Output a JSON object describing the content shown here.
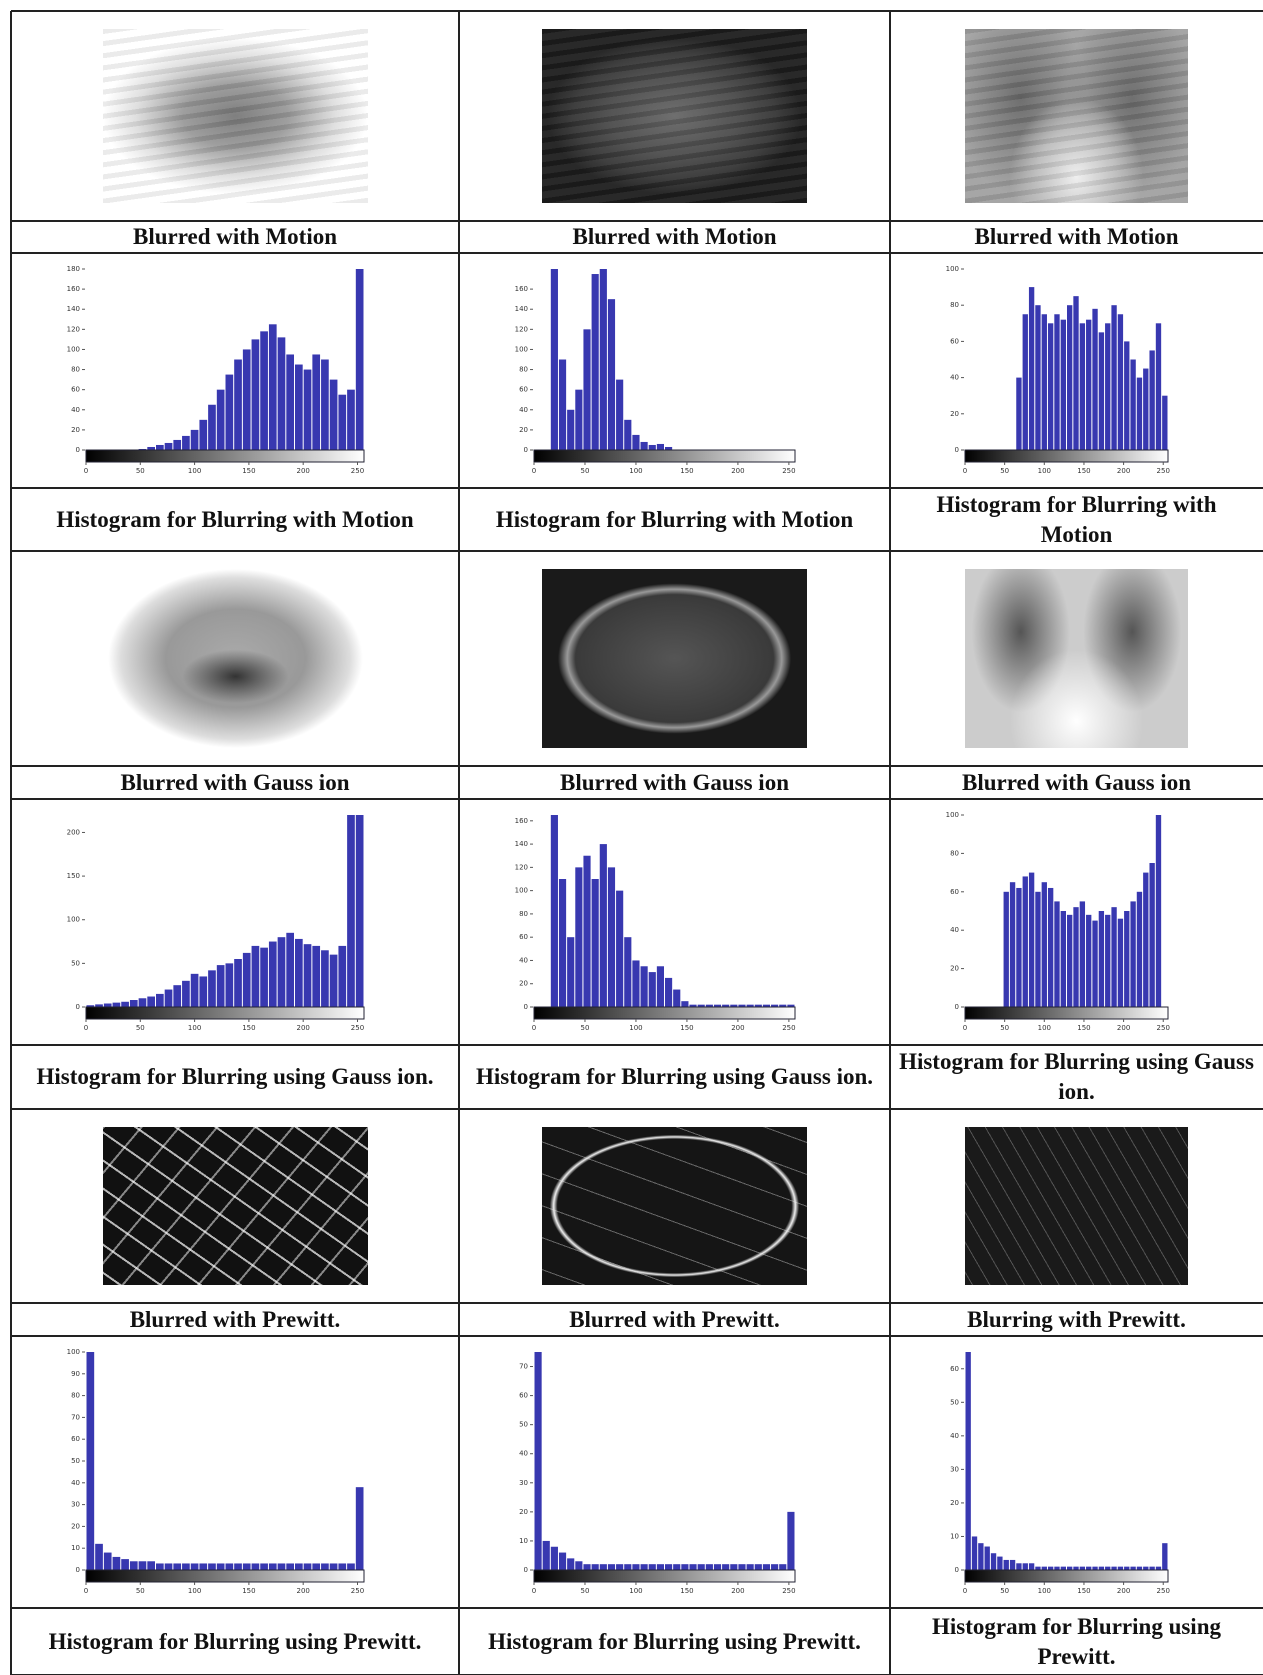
{
  "sections": [
    {
      "cells": [
        {
          "caption": "Blurred with Motion"
        },
        {
          "caption": "Blurred with Motion"
        },
        {
          "caption": "Blurred with Motion"
        }
      ]
    },
    {
      "cells": [
        {
          "caption": "Histogram for Blurring with Motion",
          "histogram": {
            "type": "bar",
            "color": "#3838b0",
            "xlim": [
              0,
              256
            ],
            "xticks": [
              0,
              50,
              100,
              150,
              200,
              250
            ],
            "ylim": [
              0,
              180
            ],
            "yticks": [
              0,
              20,
              40,
              60,
              80,
              100,
              120,
              140,
              160,
              180
            ],
            "values": [
              0,
              0,
              0,
              0,
              0,
              0,
              1,
              3,
              5,
              7,
              10,
              14,
              20,
              30,
              45,
              60,
              75,
              90,
              100,
              110,
              118,
              125,
              112,
              95,
              85,
              80,
              95,
              90,
              70,
              55,
              60,
              180
            ]
          }
        },
        {
          "caption": "Histogram for Blurring with Motion",
          "histogram": {
            "type": "bar",
            "color": "#3838b0",
            "xlim": [
              0,
              256
            ],
            "xticks": [
              0,
              50,
              100,
              150,
              200,
              250
            ],
            "ylim": [
              0,
              180
            ],
            "yticks": [
              0,
              20,
              40,
              60,
              80,
              100,
              120,
              140,
              160
            ],
            "values": [
              0,
              0,
              180,
              90,
              40,
              60,
              120,
              175,
              180,
              150,
              70,
              30,
              15,
              8,
              5,
              6,
              3,
              0,
              0,
              0,
              0,
              0,
              0,
              0,
              0,
              0,
              0,
              0,
              0,
              0,
              0,
              0
            ]
          }
        },
        {
          "caption": "Histogram for Blurring with Motion",
          "histogram": {
            "type": "bar",
            "color": "#3838b0",
            "xlim": [
              0,
              256
            ],
            "xticks": [
              0,
              50,
              100,
              150,
              200,
              250
            ],
            "ylim": [
              0,
              100
            ],
            "yticks": [
              0,
              20,
              40,
              60,
              80,
              100
            ],
            "values": [
              0,
              0,
              0,
              0,
              0,
              0,
              0,
              0,
              40,
              75,
              90,
              80,
              75,
              70,
              75,
              72,
              80,
              85,
              70,
              72,
              78,
              65,
              70,
              80,
              75,
              60,
              50,
              40,
              45,
              55,
              70,
              30
            ]
          }
        }
      ]
    },
    {
      "cells": [
        {
          "caption": "Blurred with Gauss ion"
        },
        {
          "caption": "Blurred with Gauss ion"
        },
        {
          "caption": "Blurred with Gauss ion"
        }
      ]
    },
    {
      "cells": [
        {
          "caption": "Histogram for Blurring using Gauss ion.",
          "histogram": {
            "type": "bar",
            "color": "#3838b0",
            "xlim": [
              0,
              256
            ],
            "xticks": [
              0,
              50,
              100,
              150,
              200,
              250
            ],
            "ylim": [
              0,
              220
            ],
            "yticks": [
              0,
              50,
              100,
              150,
              200
            ],
            "values": [
              2,
              3,
              4,
              5,
              6,
              8,
              10,
              12,
              15,
              20,
              25,
              30,
              38,
              35,
              42,
              48,
              50,
              55,
              62,
              70,
              68,
              75,
              80,
              85,
              78,
              72,
              70,
              65,
              60,
              70,
              220,
              220
            ]
          }
        },
        {
          "caption": "Histogram for Blurring using Gauss ion.",
          "histogram": {
            "type": "bar",
            "color": "#3838b0",
            "xlim": [
              0,
              256
            ],
            "xticks": [
              0,
              50,
              100,
              150,
              200,
              250
            ],
            "ylim": [
              0,
              165
            ],
            "yticks": [
              0,
              20,
              40,
              60,
              80,
              100,
              120,
              140,
              160
            ],
            "values": [
              0,
              0,
              165,
              110,
              60,
              120,
              130,
              110,
              140,
              120,
              100,
              60,
              40,
              35,
              30,
              35,
              25,
              15,
              5,
              2,
              2,
              2,
              2,
              2,
              2,
              2,
              2,
              2,
              2,
              2,
              2,
              2
            ]
          }
        },
        {
          "caption": "Histogram for Blurring using Gauss ion.",
          "histogram": {
            "type": "bar",
            "color": "#3838b0",
            "xlim": [
              0,
              256
            ],
            "xticks": [
              0,
              50,
              100,
              150,
              200,
              250
            ],
            "ylim": [
              0,
              100
            ],
            "yticks": [
              0,
              20,
              40,
              60,
              80,
              100
            ],
            "values": [
              0,
              0,
              0,
              0,
              0,
              0,
              60,
              65,
              62,
              68,
              70,
              60,
              65,
              62,
              55,
              50,
              48,
              52,
              55,
              48,
              45,
              50,
              48,
              52,
              46,
              50,
              55,
              60,
              70,
              75,
              100,
              0
            ]
          }
        }
      ]
    },
    {
      "cells": [
        {
          "caption": "Blurred with Prewitt."
        },
        {
          "caption": "Blurred with Prewitt."
        },
        {
          "caption": "Blurring with Prewitt."
        }
      ]
    },
    {
      "cells": [
        {
          "caption": "Histogram for Blurring using Prewitt.",
          "histogram": {
            "type": "bar",
            "color": "#3838b0",
            "xlim": [
              0,
              256
            ],
            "xticks": [
              0,
              50,
              100,
              150,
              200,
              250
            ],
            "ylim": [
              0,
              100
            ],
            "yticks": [
              0,
              10,
              20,
              30,
              40,
              50,
              60,
              70,
              80,
              90,
              100
            ],
            "values": [
              100,
              12,
              8,
              6,
              5,
              4,
              4,
              4,
              3,
              3,
              3,
              3,
              3,
              3,
              3,
              3,
              3,
              3,
              3,
              3,
              3,
              3,
              3,
              3,
              3,
              3,
              3,
              3,
              3,
              3,
              3,
              38
            ]
          }
        },
        {
          "caption": "Histogram for Blurring using Prewitt.",
          "histogram": {
            "type": "bar",
            "color": "#3838b0",
            "xlim": [
              0,
              256
            ],
            "xticks": [
              0,
              50,
              100,
              150,
              200,
              250
            ],
            "ylim": [
              0,
              75
            ],
            "yticks": [
              0,
              10,
              20,
              30,
              40,
              50,
              60,
              70
            ],
            "values": [
              75,
              10,
              8,
              6,
              4,
              3,
              2,
              2,
              2,
              2,
              2,
              2,
              2,
              2,
              2,
              2,
              2,
              2,
              2,
              2,
              2,
              2,
              2,
              2,
              2,
              2,
              2,
              2,
              2,
              2,
              2,
              20
            ]
          }
        },
        {
          "caption": "Histogram for Blurring using Prewitt.",
          "histogram": {
            "type": "bar",
            "color": "#3838b0",
            "xlim": [
              0,
              256
            ],
            "xticks": [
              0,
              50,
              100,
              150,
              200,
              250
            ],
            "ylim": [
              0,
              65
            ],
            "yticks": [
              0,
              10,
              20,
              30,
              40,
              50,
              60
            ],
            "values": [
              65,
              10,
              8,
              7,
              5,
              4,
              3,
              3,
              2,
              2,
              2,
              1,
              1,
              1,
              1,
              1,
              1,
              1,
              1,
              1,
              1,
              1,
              1,
              1,
              1,
              1,
              1,
              1,
              1,
              1,
              1,
              8
            ]
          }
        }
      ]
    }
  ]
}
